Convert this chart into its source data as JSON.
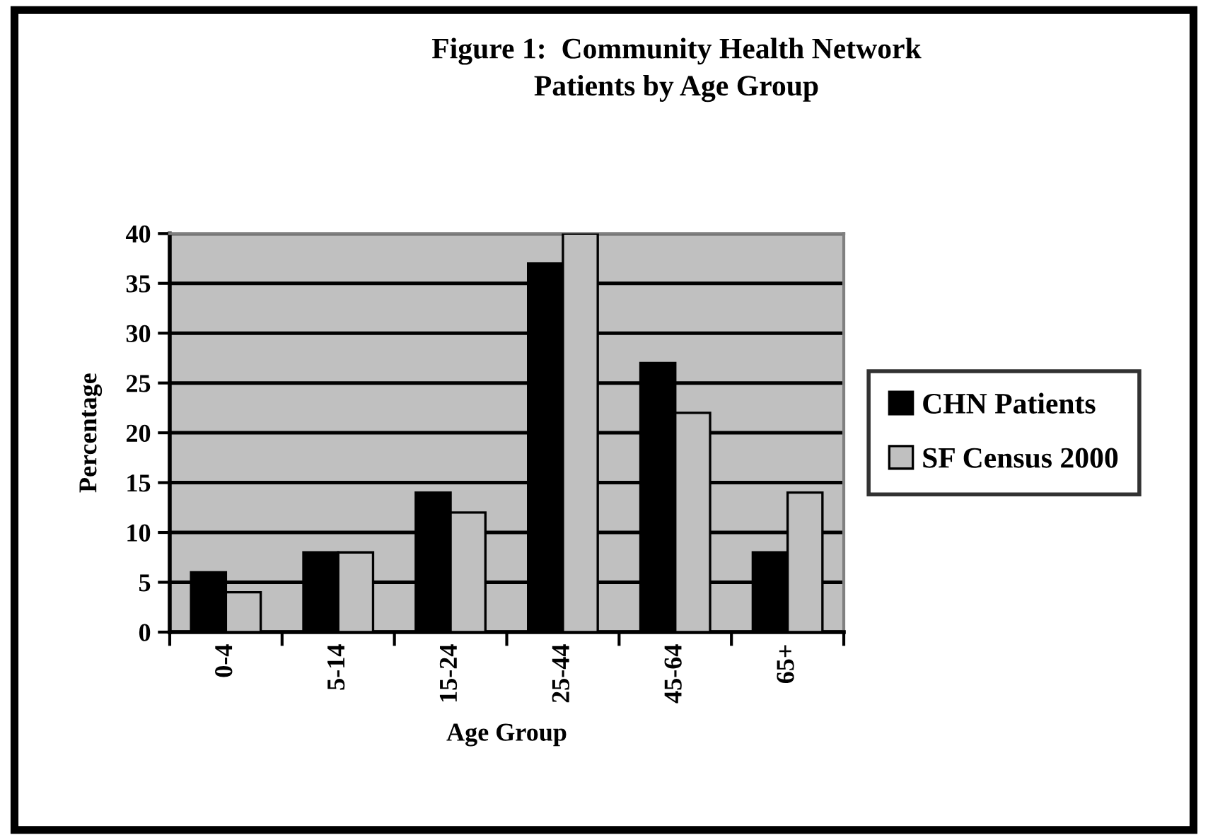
{
  "chart_data": {
    "type": "bar",
    "title": "Figure 1:  Community Health Network\nPatients by Age Group",
    "xlabel": "Age Group",
    "ylabel": "Percentage",
    "categories": [
      "0-4",
      "5-14",
      "15-24",
      "25-44",
      "45-64",
      "65+"
    ],
    "series": [
      {
        "name": "CHN Patients",
        "color": "#000000",
        "values": [
          6,
          8,
          14,
          37,
          27,
          8
        ]
      },
      {
        "name": "SF Census 2000",
        "color": "#c0c0c0",
        "values": [
          4,
          8,
          12,
          40,
          22,
          14
        ]
      }
    ],
    "ylim": [
      0,
      40
    ],
    "yticks": [
      0,
      5,
      10,
      15,
      20,
      25,
      30,
      35,
      40
    ],
    "grid": "y",
    "legend": "right"
  }
}
